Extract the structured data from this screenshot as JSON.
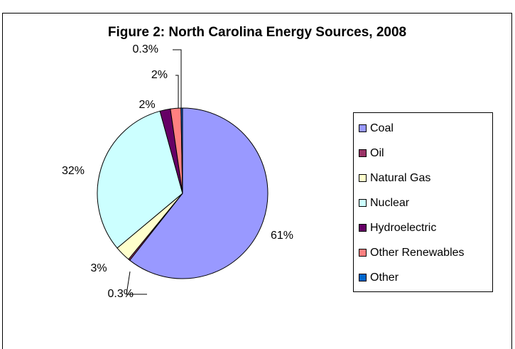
{
  "chart_data": {
    "type": "pie",
    "title": "Figure 2: North Carolina Energy Sources, 2008",
    "categories": [
      "Coal",
      "Oil",
      "Natural Gas",
      "Nuclear",
      "Hydroelectric",
      "Other Renewables",
      "Other"
    ],
    "values": [
      61,
      0.3,
      3,
      32,
      2,
      2,
      0.3
    ],
    "value_labels": [
      "61%",
      "0.3%",
      "3%",
      "32%",
      "2%",
      "2%",
      "0.3%"
    ],
    "colors": [
      "#9999ff",
      "#993366",
      "#ffffcc",
      "#ccffff",
      "#660066",
      "#ff8080",
      "#0066cc"
    ],
    "legend": "right"
  }
}
